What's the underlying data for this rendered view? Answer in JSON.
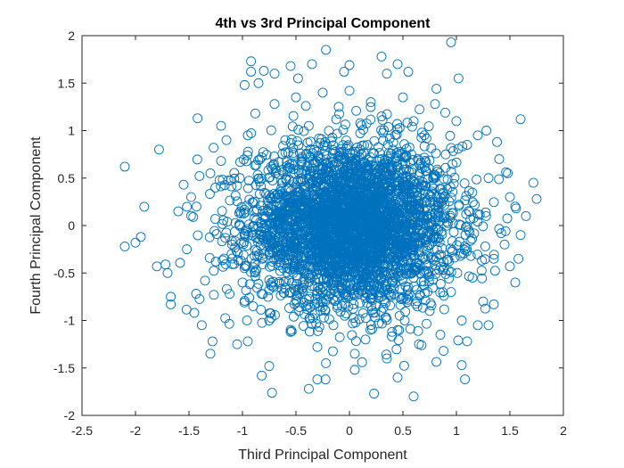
{
  "chart_data": {
    "type": "scatter",
    "title": "4th vs 3rd Principal Component",
    "xlabel": "Third Principal Component",
    "ylabel": "Fourth Principal Component",
    "xlim": [
      -2.5,
      2
    ],
    "ylim": [
      -2,
      2
    ],
    "xticks": [
      -2.5,
      -2,
      -1.5,
      -1,
      -0.5,
      0,
      0.5,
      1,
      1.5,
      2
    ],
    "xtick_labels": [
      "-2.5",
      "-2",
      "-1.5",
      "-1",
      "-0.5",
      "0",
      "0.5",
      "1",
      "1.5",
      "2"
    ],
    "yticks": [
      -2,
      -1.5,
      -1,
      -0.5,
      0,
      0.5,
      1,
      1.5,
      2
    ],
    "ytick_labels": [
      "-2",
      "-1.5",
      "-1",
      "-0.5",
      "0",
      "0.5",
      "1",
      "1.5",
      "2"
    ],
    "grid": false,
    "marker": "open-circle",
    "marker_color": "#0072BD",
    "points": [
      [
        -2.1,
        0.62
      ],
      [
        -1.78,
        0.8
      ],
      [
        -2.1,
        -0.22
      ],
      [
        -2.0,
        -0.18
      ],
      [
        -1.95,
        -0.12
      ],
      [
        -1.8,
        -0.43
      ],
      [
        -1.72,
        -0.41
      ],
      [
        -1.7,
        -0.5
      ],
      [
        -1.67,
        -0.75
      ],
      [
        -1.67,
        -0.83
      ],
      [
        -1.45,
        -0.92
      ],
      [
        -1.38,
        -1.05
      ],
      [
        -1.3,
        -1.35
      ],
      [
        -1.28,
        -1.22
      ],
      [
        -1.2,
        1.05
      ],
      [
        -1.42,
        1.13
      ],
      [
        -1.27,
        0.82
      ],
      [
        -0.98,
        1.48
      ],
      [
        -0.92,
        1.62
      ],
      [
        -0.92,
        1.73
      ],
      [
        -0.85,
        1.5
      ],
      [
        -0.8,
        1.63
      ],
      [
        -0.7,
        1.6
      ],
      [
        -0.55,
        1.68
      ],
      [
        -0.48,
        1.55
      ],
      [
        -0.35,
        1.7
      ],
      [
        -0.22,
        1.85
      ],
      [
        -0.05,
        1.62
      ],
      [
        0.0,
        1.69
      ],
      [
        0.3,
        1.78
      ],
      [
        0.35,
        1.6
      ],
      [
        0.45,
        1.7
      ],
      [
        0.55,
        1.62
      ],
      [
        0.95,
        1.93
      ],
      [
        1.02,
        1.55
      ],
      [
        1.6,
        1.12
      ],
      [
        1.72,
        0.45
      ],
      [
        1.75,
        0.28
      ],
      [
        1.55,
        -0.6
      ],
      [
        1.5,
        -0.43
      ],
      [
        1.35,
        -0.83
      ],
      [
        1.3,
        -1.05
      ],
      [
        1.1,
        -1.22
      ],
      [
        1.05,
        -1.47
      ],
      [
        1.08,
        -1.62
      ],
      [
        0.88,
        -1.32
      ],
      [
        0.45,
        -1.6
      ],
      [
        0.6,
        -1.8
      ],
      [
        0.23,
        -1.77
      ],
      [
        0.05,
        -1.52
      ],
      [
        -0.22,
        -1.45
      ],
      [
        -0.3,
        -1.62
      ],
      [
        -0.38,
        -1.72
      ],
      [
        -0.75,
        -1.48
      ],
      [
        -0.82,
        -1.58
      ],
      [
        -0.95,
        -1.22
      ],
      [
        -1.05,
        -1.25
      ],
      [
        -1.55,
        0.43
      ],
      [
        -1.6,
        0.15
      ],
      [
        -1.48,
        0.3
      ],
      [
        -1.52,
        -0.25
      ],
      [
        -1.43,
        0.2
      ],
      [
        -1.35,
        -0.58
      ],
      [
        -1.3,
        0.55
      ],
      [
        -1.25,
        -0.38
      ],
      [
        -1.2,
        0.68
      ],
      [
        -1.15,
        0.9
      ],
      [
        -1.12,
        -0.72
      ],
      [
        -1.05,
        0.42
      ],
      [
        -1.0,
        -0.6
      ],
      [
        -0.95,
        0.95
      ],
      [
        -0.9,
        -0.85
      ],
      [
        -0.88,
        1.18
      ],
      [
        -0.82,
        0.72
      ],
      [
        -0.8,
        -0.3
      ],
      [
        -0.75,
        -1.0
      ],
      [
        -0.7,
        1.28
      ],
      [
        -0.68,
        0.2
      ],
      [
        -0.62,
        -0.45
      ],
      [
        -0.6,
        0.9
      ],
      [
        -0.55,
        -1.12
      ],
      [
        -0.5,
        1.35
      ],
      [
        -0.45,
        0.55
      ],
      [
        -0.4,
        -0.78
      ],
      [
        -0.38,
        1.05
      ],
      [
        -0.3,
        -1.28
      ],
      [
        -0.25,
        1.4
      ],
      [
        -0.2,
        0.15
      ],
      [
        -0.15,
        -1.05
      ],
      [
        -0.1,
        1.25
      ],
      [
        -0.05,
        -0.55
      ],
      [
        0.0,
        1.42
      ],
      [
        0.05,
        -1.35
      ],
      [
        0.1,
        0.8
      ],
      [
        0.15,
        -1.2
      ],
      [
        0.2,
        1.3
      ],
      [
        0.25,
        -0.85
      ],
      [
        0.3,
        1.15
      ],
      [
        0.35,
        -1.4
      ],
      [
        0.4,
        0.6
      ],
      [
        0.45,
        -1.1
      ],
      [
        0.5,
        1.35
      ],
      [
        0.55,
        -0.65
      ],
      [
        0.6,
        1.1
      ],
      [
        0.65,
        -1.25
      ],
      [
        0.7,
        0.95
      ],
      [
        0.75,
        -0.9
      ],
      [
        0.8,
        1.28
      ],
      [
        0.85,
        -1.15
      ],
      [
        0.9,
        0.75
      ],
      [
        0.95,
        -0.7
      ],
      [
        1.0,
        1.1
      ],
      [
        1.05,
        -1.0
      ],
      [
        1.1,
        0.85
      ],
      [
        1.15,
        -0.55
      ],
      [
        1.2,
        0.95
      ],
      [
        1.25,
        -0.8
      ],
      [
        1.3,
        0.5
      ],
      [
        1.35,
        -0.35
      ],
      [
        1.4,
        0.7
      ],
      [
        1.45,
        -0.2
      ],
      [
        1.5,
        0.3
      ],
      [
        1.55,
        0.2
      ],
      [
        1.6,
        -0.1
      ],
      [
        1.65,
        0.1
      ],
      [
        1.58,
        -0.35
      ],
      [
        1.48,
        0.55
      ],
      [
        1.38,
        0.88
      ],
      [
        1.28,
        1.0
      ],
      [
        1.2,
        -1.05
      ]
    ]
  }
}
